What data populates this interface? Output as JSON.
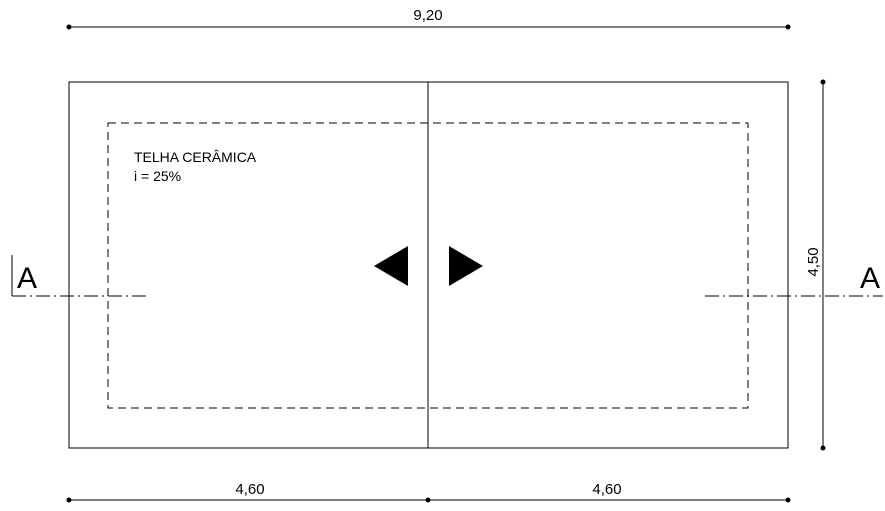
{
  "dimensions": {
    "total_width": "9,20",
    "left_half": "4,60",
    "right_half": "4,60",
    "depth": "4,50"
  },
  "roof_note": {
    "material": "TELHA CERÂMICA",
    "slope": "i = 25%"
  },
  "section_cut": {
    "left_label": "A",
    "right_label": "A"
  }
}
